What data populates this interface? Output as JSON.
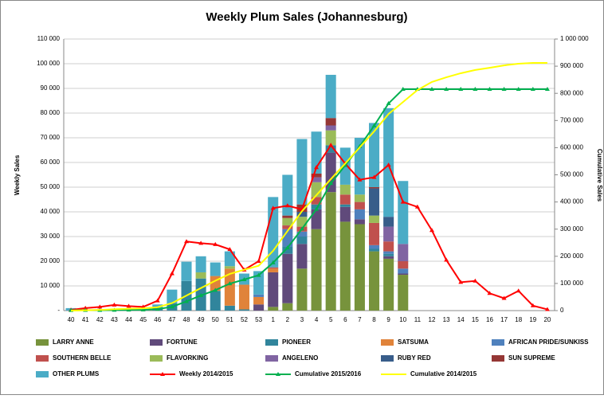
{
  "chart_data": {
    "type": "bar",
    "stacked": true,
    "title": "Weekly Plum Sales (Johannesburg)",
    "ylabel": "Weekly Sales",
    "y2label": "Cumulative Sales",
    "grid": true,
    "categories": [
      "40",
      "41",
      "42",
      "43",
      "44",
      "45",
      "46",
      "47",
      "48",
      "49",
      "50",
      "51",
      "52",
      "53",
      "1",
      "2",
      "3",
      "4",
      "5",
      "6",
      "7",
      "8",
      "9",
      "10",
      "11",
      "12",
      "13",
      "14",
      "15",
      "16",
      "17",
      "18",
      "19",
      "20"
    ],
    "ylim": [
      0,
      110000
    ],
    "yticks": [
      {
        "value": 0,
        "label": "-"
      },
      {
        "value": 10000,
        "label": "10 000"
      },
      {
        "value": 20000,
        "label": "20 000"
      },
      {
        "value": 30000,
        "label": "30 000"
      },
      {
        "value": 40000,
        "label": "40 000"
      },
      {
        "value": 50000,
        "label": "50 000"
      },
      {
        "value": 60000,
        "label": "60 000"
      },
      {
        "value": 70000,
        "label": "70 000"
      },
      {
        "value": 80000,
        "label": "80 000"
      },
      {
        "value": 90000,
        "label": "90 000"
      },
      {
        "value": 100000,
        "label": "100 000"
      },
      {
        "value": 110000,
        "label": "110 000"
      }
    ],
    "y2lim": [
      0,
      1000000
    ],
    "y2ticks": [
      0,
      {
        "value": 100000,
        "label": "100 000"
      },
      {
        "value": 200000,
        "label": "200 000"
      },
      {
        "value": 300000,
        "label": "300 000"
      },
      {
        "value": 400000,
        "label": "400 000"
      },
      {
        "value": 500000,
        "label": "500 000"
      },
      {
        "value": 600000,
        "label": "600 000"
      },
      {
        "value": 700000,
        "label": "700 000"
      },
      {
        "value": 800000,
        "label": "800 000"
      },
      {
        "value": 900000,
        "label": "900 000"
      },
      {
        "value": 1000000,
        "label": "1 000 000"
      }
    ],
    "series": [
      {
        "name": "LARRY ANNE",
        "color": "#77933c",
        "values": [
          0,
          0,
          0,
          0,
          0,
          0,
          0,
          0,
          0,
          0,
          0,
          0,
          0,
          0,
          1500,
          3000,
          17000,
          33000,
          48000,
          36000,
          35000,
          24000,
          21000,
          14500,
          0,
          0,
          0,
          0,
          0,
          0,
          0,
          0,
          0,
          0
        ]
      },
      {
        "name": "FORTUNE",
        "color": "#604a7b",
        "values": [
          0,
          0,
          0,
          0,
          0,
          0,
          0,
          0,
          0,
          0,
          0,
          0,
          0,
          2500,
          14000,
          20000,
          10000,
          8000,
          16000,
          6000,
          2000,
          0,
          1000,
          500,
          0,
          0,
          0,
          0,
          0,
          0,
          0,
          0,
          0,
          0
        ]
      },
      {
        "name": "PIONEER",
        "color": "#31859c",
        "values": [
          0,
          0,
          0,
          0,
          0,
          0,
          1000,
          3000,
          12000,
          13000,
          8000,
          2000,
          500,
          0,
          0,
          3000,
          3000,
          2000,
          3000,
          1000,
          0,
          1000,
          1000,
          0,
          0,
          0,
          0,
          0,
          0,
          0,
          0,
          0,
          0,
          0
        ]
      },
      {
        "name": "SATSUMA",
        "color": "#e0833a",
        "values": [
          0,
          0,
          0,
          0,
          0,
          0,
          0,
          0,
          0,
          0,
          6000,
          15000,
          10000,
          3000,
          1500,
          0,
          0,
          0,
          0,
          0,
          0,
          0,
          0,
          0,
          0,
          0,
          0,
          0,
          0,
          0,
          0,
          0,
          0,
          0
        ]
      },
      {
        "name": "AFRICAN PRIDE/SUNKISS",
        "color": "#4f81bd",
        "values": [
          0,
          0,
          0,
          0,
          0,
          0,
          0,
          0,
          0,
          0,
          0,
          0,
          0,
          1000,
          0,
          7000,
          2000,
          0,
          0,
          0,
          4000,
          1500,
          1000,
          2000,
          0,
          0,
          0,
          0,
          0,
          0,
          0,
          0,
          0,
          0
        ]
      },
      {
        "name": "SOUTHERN BELLE",
        "color": "#c0504d",
        "values": [
          0,
          0,
          0,
          0,
          0,
          0,
          0,
          0,
          0,
          0,
          0,
          0,
          0,
          0,
          500,
          1500,
          2000,
          3000,
          0,
          4000,
          3000,
          9000,
          4000,
          3000,
          0,
          0,
          0,
          0,
          0,
          0,
          0,
          0,
          0,
          0
        ]
      },
      {
        "name": "FLAVORKING",
        "color": "#9bbb59",
        "values": [
          0,
          0,
          0,
          0,
          0,
          0,
          0,
          0,
          0,
          2500,
          0,
          1000,
          0,
          0,
          0,
          3000,
          4000,
          6000,
          6000,
          4000,
          3000,
          3000,
          0,
          0,
          0,
          0,
          0,
          0,
          0,
          0,
          0,
          0,
          0,
          0
        ]
      },
      {
        "name": "ANGELENO",
        "color": "#8064a2",
        "values": [
          0,
          0,
          0,
          0,
          0,
          0,
          0,
          0,
          0,
          0,
          0,
          0,
          0,
          0,
          0,
          0,
          0,
          2000,
          2000,
          0,
          0,
          0,
          6000,
          7000,
          0,
          0,
          0,
          0,
          0,
          0,
          0,
          0,
          0,
          0
        ]
      },
      {
        "name": "RUBY RED",
        "color": "#385d8a",
        "values": [
          0,
          0,
          0,
          0,
          0,
          0,
          0,
          0,
          0,
          0,
          0,
          0,
          0,
          0,
          0,
          0,
          2000,
          0,
          0,
          0,
          0,
          11000,
          4000,
          0,
          0,
          0,
          0,
          0,
          0,
          0,
          0,
          0,
          0,
          0
        ]
      },
      {
        "name": "SUN SUPREME",
        "color": "#953735",
        "values": [
          0,
          0,
          0,
          0,
          0,
          0,
          0,
          0,
          0,
          0,
          0,
          0,
          0,
          0,
          0,
          1000,
          3000,
          1500,
          3000,
          0,
          0,
          500,
          0,
          0,
          0,
          0,
          0,
          0,
          0,
          0,
          0,
          0,
          0,
          0
        ]
      },
      {
        "name": "OTHER PLUMS",
        "color": "#4bacc6",
        "values": [
          1000,
          500,
          0,
          500,
          500,
          500,
          1500,
          5500,
          7800,
          6500,
          5500,
          6000,
          4500,
          9500,
          28500,
          16500,
          26500,
          17000,
          17500,
          15000,
          23000,
          26000,
          44000,
          25500,
          0,
          0,
          0,
          0,
          0,
          0,
          0,
          0,
          0,
          0
        ]
      },
      {
        "name": "Weekly 2014/2015",
        "color": "#ff0000",
        "type": "line",
        "marker": "triangle",
        "values": [
          300,
          1000,
          1500,
          2300,
          1800,
          1500,
          4000,
          15000,
          28000,
          27300,
          26800,
          24800,
          16500,
          20000,
          41500,
          42500,
          41000,
          58000,
          67000,
          59500,
          53000,
          54000,
          59000,
          44000,
          42000,
          32500,
          20500,
          11500,
          12000,
          7000,
          5000,
          8000,
          2000,
          500
        ]
      },
      {
        "name": "Cumulative 2015/2016",
        "color": "#00b050",
        "type": "line",
        "marker": "triangle",
        "axis": "y2",
        "values": [
          1000,
          1500,
          1500,
          2000,
          2500,
          3000,
          5500,
          14000,
          33800,
          55800,
          75300,
          99300,
          114300,
          130300,
          176300,
          231300,
          300800,
          373300,
          468800,
          534800,
          604800,
          680800,
          762800,
          815300,
          815300,
          815300,
          815300,
          815300,
          815300,
          815300,
          815300,
          815300,
          815300,
          815300
        ]
      },
      {
        "name": "Cumulative 2014/2015",
        "color": "#ffff00",
        "type": "line",
        "axis": "y2",
        "values": [
          0,
          1000,
          2500,
          5000,
          7000,
          8500,
          12500,
          27500,
          55500,
          83000,
          110000,
          135000,
          150500,
          165000,
          220000,
          293000,
          366000,
          425000,
          484000,
          542000,
          601000,
          660000,
          724000,
          768000,
          812000,
          842000,
          859000,
          874000,
          886000,
          894000,
          903000,
          909000,
          912000,
          912000
        ]
      }
    ]
  }
}
